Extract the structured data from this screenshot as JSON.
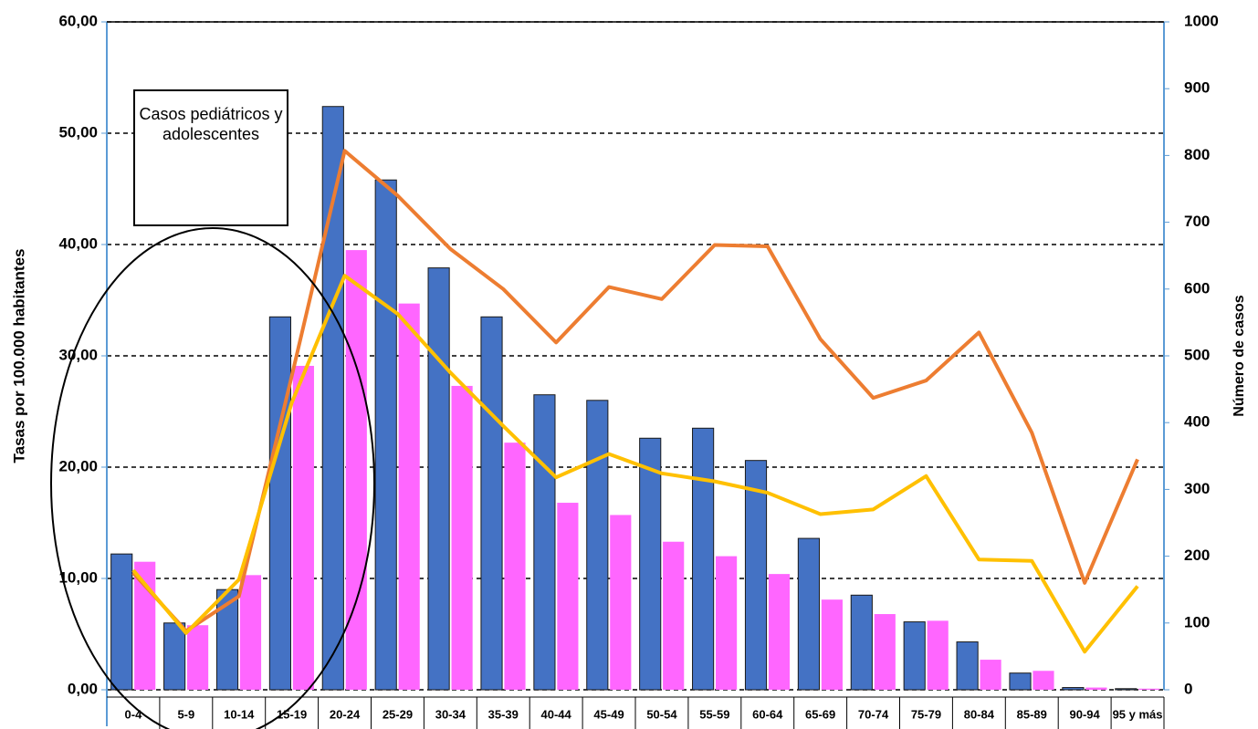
{
  "chart_data": {
    "type": "combo",
    "y_label": "Tasas por 100.000 habitantes",
    "y2_label": "Número de casos",
    "annotation": "Casos pediátricos y adolescentes",
    "categories": [
      "0-4",
      "5-9",
      "10-14",
      "15-19",
      "20-24",
      "25-29",
      "30-34",
      "35-39",
      "40-44",
      "45-49",
      "50-54",
      "55-59",
      "60-64",
      "65-69",
      "70-74",
      "75-79",
      "80-84",
      "85-89",
      "90-94",
      "95 y más"
    ],
    "series": [
      {
        "type": "bar",
        "color": "#4472c4",
        "values": [
          12.2,
          6.0,
          9.0,
          33.5,
          52.4,
          45.8,
          37.9,
          33.5,
          26.5,
          26.0,
          22.6,
          23.5,
          20.6,
          13.6,
          8.5,
          6.1,
          4.3,
          1.5,
          0.2,
          0.1
        ]
      },
      {
        "type": "bar",
        "color": "#ff66ff",
        "values": [
          11.5,
          5.8,
          10.3,
          29.1,
          39.5,
          34.7,
          27.3,
          22.2,
          16.8,
          15.7,
          13.3,
          12.0,
          10.4,
          8.1,
          6.8,
          6.2,
          2.7,
          1.7,
          0.2,
          0.1
        ]
      },
      {
        "type": "line",
        "axis": "y2",
        "color": "#ed7d31",
        "values": [
          175,
          88,
          140,
          470,
          807,
          740,
          660,
          600,
          520,
          603,
          585,
          666,
          664,
          525,
          437,
          463,
          535,
          385,
          160,
          345
        ]
      },
      {
        "type": "line",
        "axis": "y2",
        "color": "#ffc000",
        "values": [
          179,
          85,
          165,
          430,
          620,
          563,
          475,
          395,
          318,
          353,
          324,
          312,
          295,
          263,
          270,
          320,
          195,
          193,
          57,
          155
        ]
      }
    ],
    "ylim": [
      0,
      60
    ],
    "yticks": [
      {
        "value": 0,
        "label": "0,00"
      },
      {
        "value": 10,
        "label": "10,00"
      },
      {
        "value": 20,
        "label": "20,00"
      },
      {
        "value": 30,
        "label": "30,00"
      },
      {
        "value": 40,
        "label": "40,00"
      },
      {
        "value": 50,
        "label": "50,00"
      },
      {
        "value": 60,
        "label": "60,00"
      }
    ],
    "y2lim": [
      0,
      1000
    ],
    "y2ticks": [
      0,
      100,
      200,
      300,
      400,
      500,
      600,
      700,
      800,
      900,
      1000
    ],
    "grid": true
  }
}
